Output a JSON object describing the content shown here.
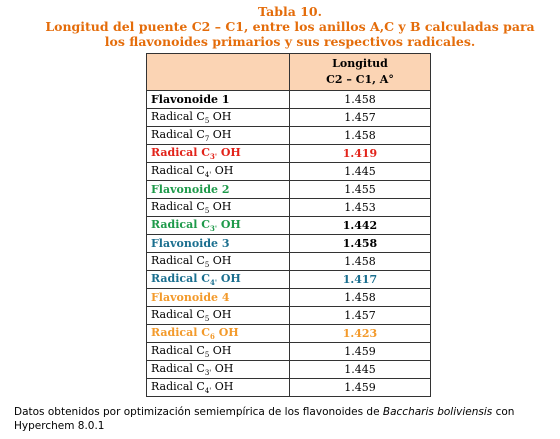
{
  "title": {
    "line1": "Tabla 10.",
    "line2": "Longitud del puente C2 – C1, entre los anillos A,C y B calculadas para",
    "line3": "los flavonoides primarios y sus respectivos radicales."
  },
  "table": {
    "header": {
      "line1": "Longitud",
      "line2": "C2 – C1, A°"
    },
    "rows": [
      {
        "label": "Flavonoide 1",
        "value": 1.458,
        "label_color": "#000000",
        "value_color": "#000000",
        "label_bold": true,
        "value_bold": false
      },
      {
        "label": "Radical C",
        "sub": "5",
        "suffix": "OH",
        "value": 1.457,
        "label_color": "#000000",
        "value_color": "#000000",
        "label_bold": false,
        "value_bold": false
      },
      {
        "label": "Radical C",
        "sub": "7",
        "suffix": "OH",
        "value": 1.458,
        "label_color": "#000000",
        "value_color": "#000000",
        "label_bold": false,
        "value_bold": false
      },
      {
        "label": "Radical C",
        "sub": "3'",
        "suffix": "OH",
        "value": 1.419,
        "label_color": "#e2231a",
        "value_color": "#e2231a",
        "label_bold": true,
        "value_bold": true
      },
      {
        "label": "Radical C",
        "sub": "4'",
        "suffix": "OH",
        "value": 1.445,
        "label_color": "#000000",
        "value_color": "#000000",
        "label_bold": false,
        "value_bold": false
      },
      {
        "label": "Flavonoide 2",
        "value": 1.455,
        "label_color": "#1e9a4a",
        "value_color": "#000000",
        "label_bold": true,
        "value_bold": false
      },
      {
        "label": "Radical C",
        "sub": "5",
        "suffix": "OH",
        "value": 1.453,
        "label_color": "#000000",
        "value_color": "#000000",
        "label_bold": false,
        "value_bold": false
      },
      {
        "label": "Radical C",
        "sub": "3'",
        "suffix": "OH",
        "value": 1.442,
        "label_color": "#1e9a4a",
        "value_color": "#000000",
        "label_bold": true,
        "value_bold": true
      },
      {
        "label": "Flavonoide 3",
        "value": 1.458,
        "label_color": "#1b6f8f",
        "value_color": "#000000",
        "label_bold": true,
        "value_bold": true
      },
      {
        "label": "Radical C",
        "sub": "5",
        "suffix": "OH",
        "value": 1.458,
        "label_color": "#000000",
        "value_color": "#000000",
        "label_bold": false,
        "value_bold": false
      },
      {
        "label": "Radical C",
        "sub": "4'",
        "suffix": "OH",
        "value": 1.417,
        "label_color": "#1b6f8f",
        "value_color": "#1b6f8f",
        "label_bold": true,
        "value_bold": true
      },
      {
        "label": "Flavonoide 4",
        "value": 1.458,
        "label_color": "#f39a2b",
        "value_color": "#000000",
        "label_bold": true,
        "value_bold": false
      },
      {
        "label": "Radical C",
        "sub": "5",
        "suffix": "OH",
        "value": 1.457,
        "label_color": "#000000",
        "value_color": "#000000",
        "label_bold": false,
        "value_bold": false
      },
      {
        "label": "Radical C",
        "sub": "6",
        "suffix": "OH",
        "value": 1.423,
        "label_color": "#f39a2b",
        "value_color": "#f39a2b",
        "label_bold": true,
        "value_bold": true
      },
      {
        "label": "Radical C",
        "sub": "5",
        "suffix": "OH",
        "value": 1.459,
        "label_color": "#000000",
        "value_color": "#000000",
        "label_bold": false,
        "value_bold": false
      },
      {
        "label": "Radical C",
        "sub": "3'",
        "suffix": "OH",
        "value": 1.445,
        "label_color": "#000000",
        "value_color": "#000000",
        "label_bold": false,
        "value_bold": false
      },
      {
        "label": "Radical C",
        "sub": "4'",
        "suffix": "OH",
        "value": 1.459,
        "label_color": "#000000",
        "value_color": "#000000",
        "label_bold": false,
        "value_bold": false
      }
    ]
  },
  "footer": {
    "text1": "Datos obtenidos por optimización semiempírica de los flavonoides de ",
    "species": "Baccharis boliviensis",
    "text2": " con Hyperchem 8.0.1"
  }
}
